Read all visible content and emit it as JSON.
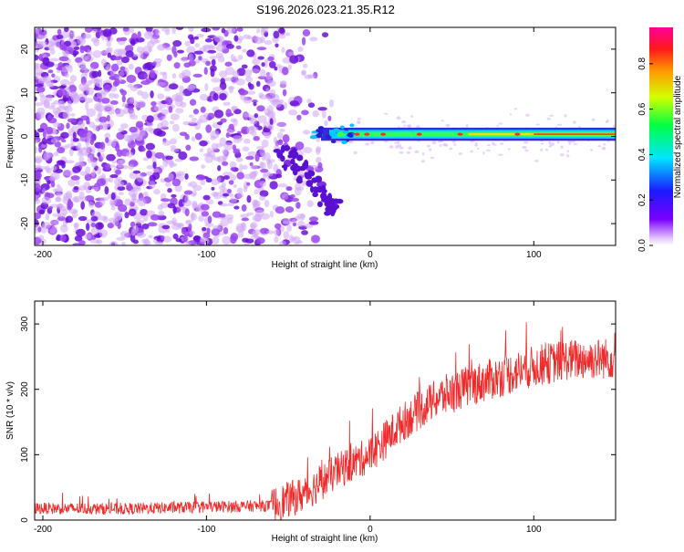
{
  "title": "S196.2026.023.21.35.R12",
  "colors": {
    "snr_line": "#ee2a2a",
    "axis": "#000000",
    "scatter": "#7a1fe0"
  },
  "chart_data": [
    {
      "type": "heatmap",
      "xlabel": "Height of straight line (km)",
      "ylabel": "Frequency (Hz)",
      "xlim": [
        -205,
        150
      ],
      "ylim": [
        -25,
        25
      ],
      "xticks": [
        -200,
        -100,
        0,
        100
      ],
      "yticks": [
        -20,
        -10,
        0,
        10,
        20
      ],
      "colorbar": {
        "label": "Normalized spectral amplitude",
        "range": [
          0,
          0.96
        ],
        "ticks": [
          "0.0",
          "0.2",
          "0.4",
          "0.6",
          "0.8"
        ]
      },
      "band_center_hz": 0.5
    },
    {
      "type": "line",
      "xlabel": "Height of straight line (km)",
      "ylabel": "SNR (10 * v/v)",
      "xlim": [
        -205,
        150
      ],
      "ylim": [
        0,
        335
      ],
      "xticks": [
        -200,
        -100,
        0,
        100
      ],
      "yticks": [
        0,
        100,
        200,
        300
      ],
      "trend": {
        "x": [
          -205,
          -150,
          -100,
          -60,
          -40,
          -20,
          0,
          20,
          40,
          60,
          80,
          100,
          120,
          150
        ],
        "y": [
          18,
          17,
          20,
          22,
          40,
          75,
          100,
          150,
          185,
          205,
          220,
          235,
          245,
          248
        ]
      }
    }
  ]
}
